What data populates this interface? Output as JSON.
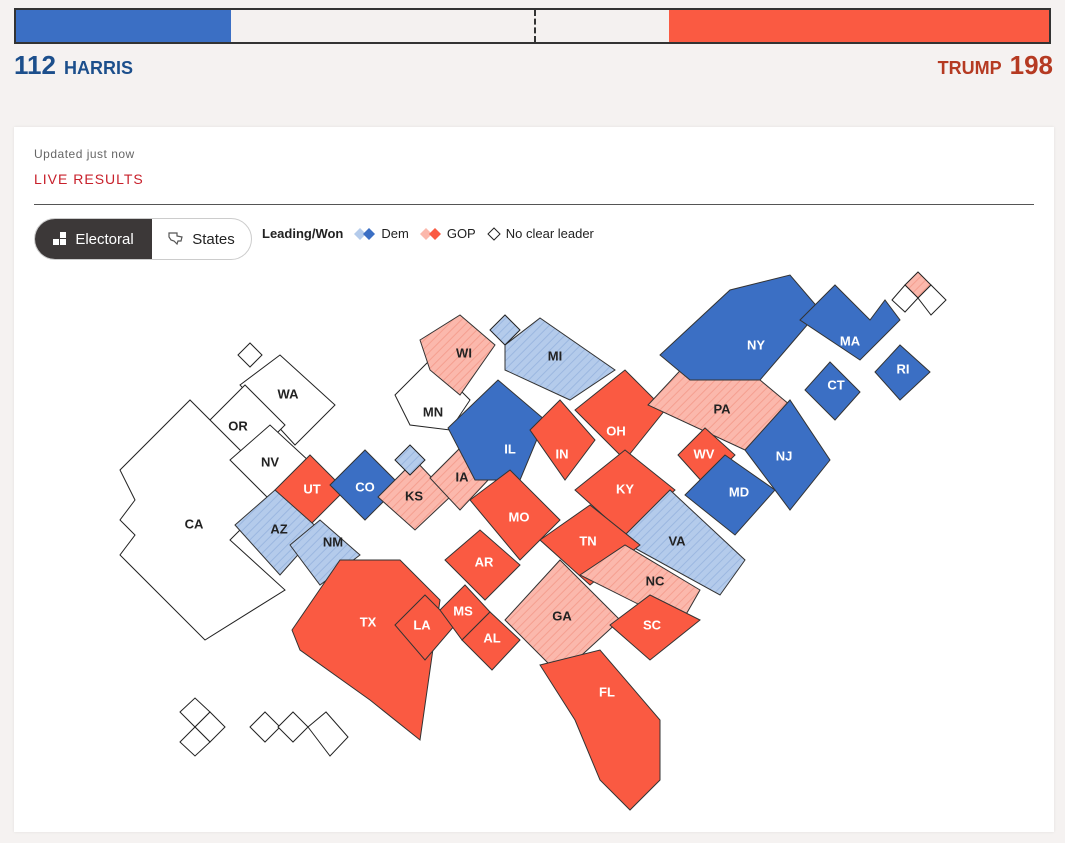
{
  "header": {
    "dem": {
      "count": "112",
      "name": "HARRIS",
      "color": "#3b6fc4"
    },
    "gop": {
      "count": "198",
      "name": "TRUMP",
      "color": "#fa5a42"
    },
    "bar": {
      "dem_share": 0.208,
      "gop_share": 0.368
    }
  },
  "status": {
    "updated": "Updated just now",
    "live": "LIVE RESULTS"
  },
  "toggle": {
    "electoral": "Electoral",
    "states": "States",
    "electoral_icon": "grid-icon",
    "states_icon": "map-icon"
  },
  "legend": {
    "title": "Leading/Won",
    "dem": "Dem",
    "gop": "GOP",
    "none": "No clear leader"
  },
  "colors": {
    "dem_won": "#3b6fc4",
    "dem_lead": "#b4cbeb",
    "gop_won": "#fa5a42",
    "gop_lead": "#fbb8ac",
    "none": "#ffffff"
  },
  "states": [
    {
      "abbr": "WA",
      "status": "none"
    },
    {
      "abbr": "OR",
      "status": "none"
    },
    {
      "abbr": "CA",
      "status": "none"
    },
    {
      "abbr": "NV",
      "status": "none"
    },
    {
      "abbr": "UT",
      "status": "gop_won"
    },
    {
      "abbr": "AZ",
      "status": "dem_lead"
    },
    {
      "abbr": "NM",
      "status": "dem_lead"
    },
    {
      "abbr": "CO",
      "status": "dem_won"
    },
    {
      "abbr": "KS",
      "status": "gop_lead"
    },
    {
      "abbr": "IA",
      "status": "gop_lead"
    },
    {
      "abbr": "MN",
      "status": "none"
    },
    {
      "abbr": "WI",
      "status": "gop_lead"
    },
    {
      "abbr": "MI",
      "status": "dem_lead"
    },
    {
      "abbr": "IL",
      "status": "dem_won"
    },
    {
      "abbr": "IN",
      "status": "gop_won"
    },
    {
      "abbr": "OH",
      "status": "gop_won"
    },
    {
      "abbr": "PA",
      "status": "gop_lead"
    },
    {
      "abbr": "NY",
      "status": "dem_won"
    },
    {
      "abbr": "MA",
      "status": "dem_won"
    },
    {
      "abbr": "CT",
      "status": "dem_won"
    },
    {
      "abbr": "RI",
      "status": "dem_won"
    },
    {
      "abbr": "NJ",
      "status": "dem_won"
    },
    {
      "abbr": "WV",
      "status": "gop_won"
    },
    {
      "abbr": "MD",
      "status": "dem_won"
    },
    {
      "abbr": "KY",
      "status": "gop_won"
    },
    {
      "abbr": "VA",
      "status": "dem_lead"
    },
    {
      "abbr": "MO",
      "status": "gop_won"
    },
    {
      "abbr": "TN",
      "status": "gop_won"
    },
    {
      "abbr": "NC",
      "status": "gop_lead"
    },
    {
      "abbr": "AR",
      "status": "gop_won"
    },
    {
      "abbr": "TX",
      "status": "gop_won"
    },
    {
      "abbr": "LA",
      "status": "gop_won"
    },
    {
      "abbr": "MS",
      "status": "gop_won"
    },
    {
      "abbr": "AL",
      "status": "gop_won"
    },
    {
      "abbr": "GA",
      "status": "gop_lead"
    },
    {
      "abbr": "SC",
      "status": "gop_won"
    },
    {
      "abbr": "FL",
      "status": "gop_won"
    }
  ]
}
